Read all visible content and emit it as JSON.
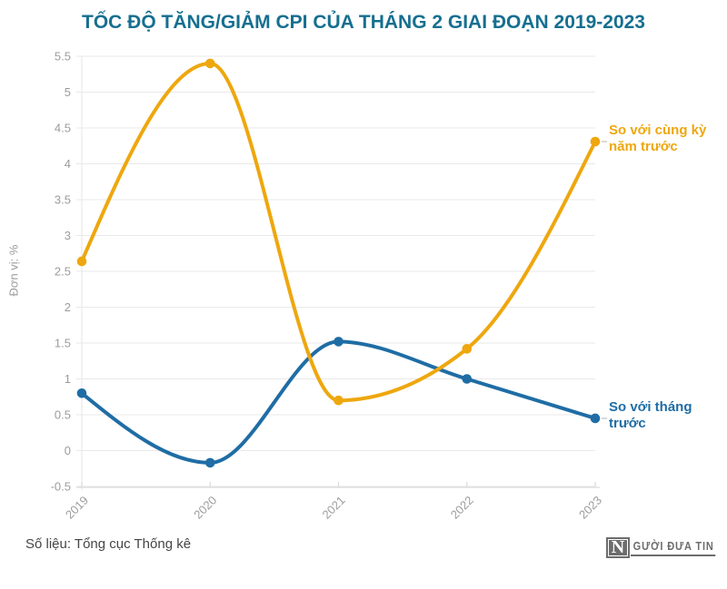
{
  "title": "TỐC ĐỘ TĂNG/GIẢM CPI CỦA THÁNG 2 GIAI ĐOẠN 2019-2023",
  "chart_data": {
    "type": "line",
    "x": [
      "2019",
      "2020",
      "2021",
      "2022",
      "2023"
    ],
    "xlabel": "",
    "ylabel": "Đơn vị: %",
    "ylim": [
      -0.5,
      5.5
    ],
    "ytick_step": 0.5,
    "grid": true,
    "curve": "monotone",
    "legend_position": "right-end-of-line",
    "series": [
      {
        "name": "So với tháng trước",
        "label_lines": [
          "So với tháng",
          "trước"
        ],
        "color": "#1F6DA5",
        "values": [
          0.8,
          -0.17,
          1.52,
          1.0,
          0.45
        ]
      },
      {
        "name": "So với cùng kỳ năm trước",
        "label_lines": [
          "So với cùng kỳ",
          "năm trước"
        ],
        "color": "#EEA70E",
        "values": [
          2.64,
          5.4,
          0.7,
          1.42,
          4.31
        ]
      }
    ]
  },
  "source": "Số liệu: Tổng cục Thống kê",
  "logo": {
    "initial": "N",
    "name": "GƯỜI ĐƯA TIN"
  },
  "colors": {
    "title": "#166F8F",
    "grid": "#E9E9E9",
    "axis": "#DADADA",
    "tick_label": "#9C9C9C",
    "leader_dash": "#CCCCCC",
    "source_text": "#454545",
    "logo": "#6D6D6D"
  }
}
